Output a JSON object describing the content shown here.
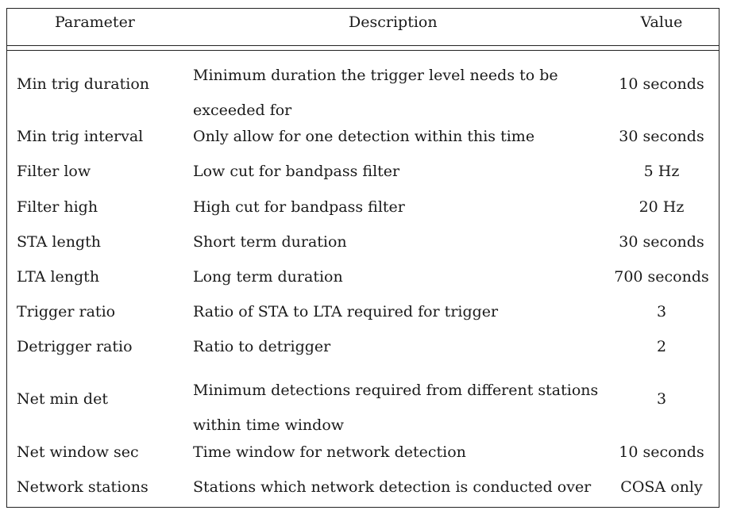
{
  "table": {
    "headers": {
      "parameter": "Parameter",
      "description": "Description",
      "value": "Value"
    },
    "rows": [
      {
        "parameter": "Min trig duration",
        "description_line1": "Minimum duration the trigger level needs to be",
        "description_line2": "exceeded for",
        "value": "10 seconds"
      },
      {
        "parameter": "Min trig interval",
        "description": "Only allow for one detection within this time",
        "value": "30 seconds"
      },
      {
        "parameter": "Filter low",
        "description": "Low cut for bandpass filter",
        "value": "5 Hz"
      },
      {
        "parameter": "Filter high",
        "description": "High cut for bandpass filter",
        "value": "20 Hz"
      },
      {
        "parameter": "STA length",
        "description": "Short term duration",
        "value": "30 seconds"
      },
      {
        "parameter": "LTA length",
        "description": "Long term duration",
        "value": "700 seconds"
      },
      {
        "parameter": "Trigger ratio",
        "description": "Ratio of STA to LTA required for trigger",
        "value": "3"
      },
      {
        "parameter": "Detrigger ratio",
        "description": "Ratio to detrigger",
        "value": "2"
      },
      {
        "parameter": "Net min det",
        "description_line1": "Minimum detections required from different stations",
        "description_line2": "within time window",
        "value": "3"
      },
      {
        "parameter": "Net window sec",
        "description": "Time window for network detection",
        "value": "10 seconds"
      },
      {
        "parameter": "Network stations",
        "description": "Stations which network detection is conducted over",
        "value": "COSA only"
      }
    ]
  }
}
